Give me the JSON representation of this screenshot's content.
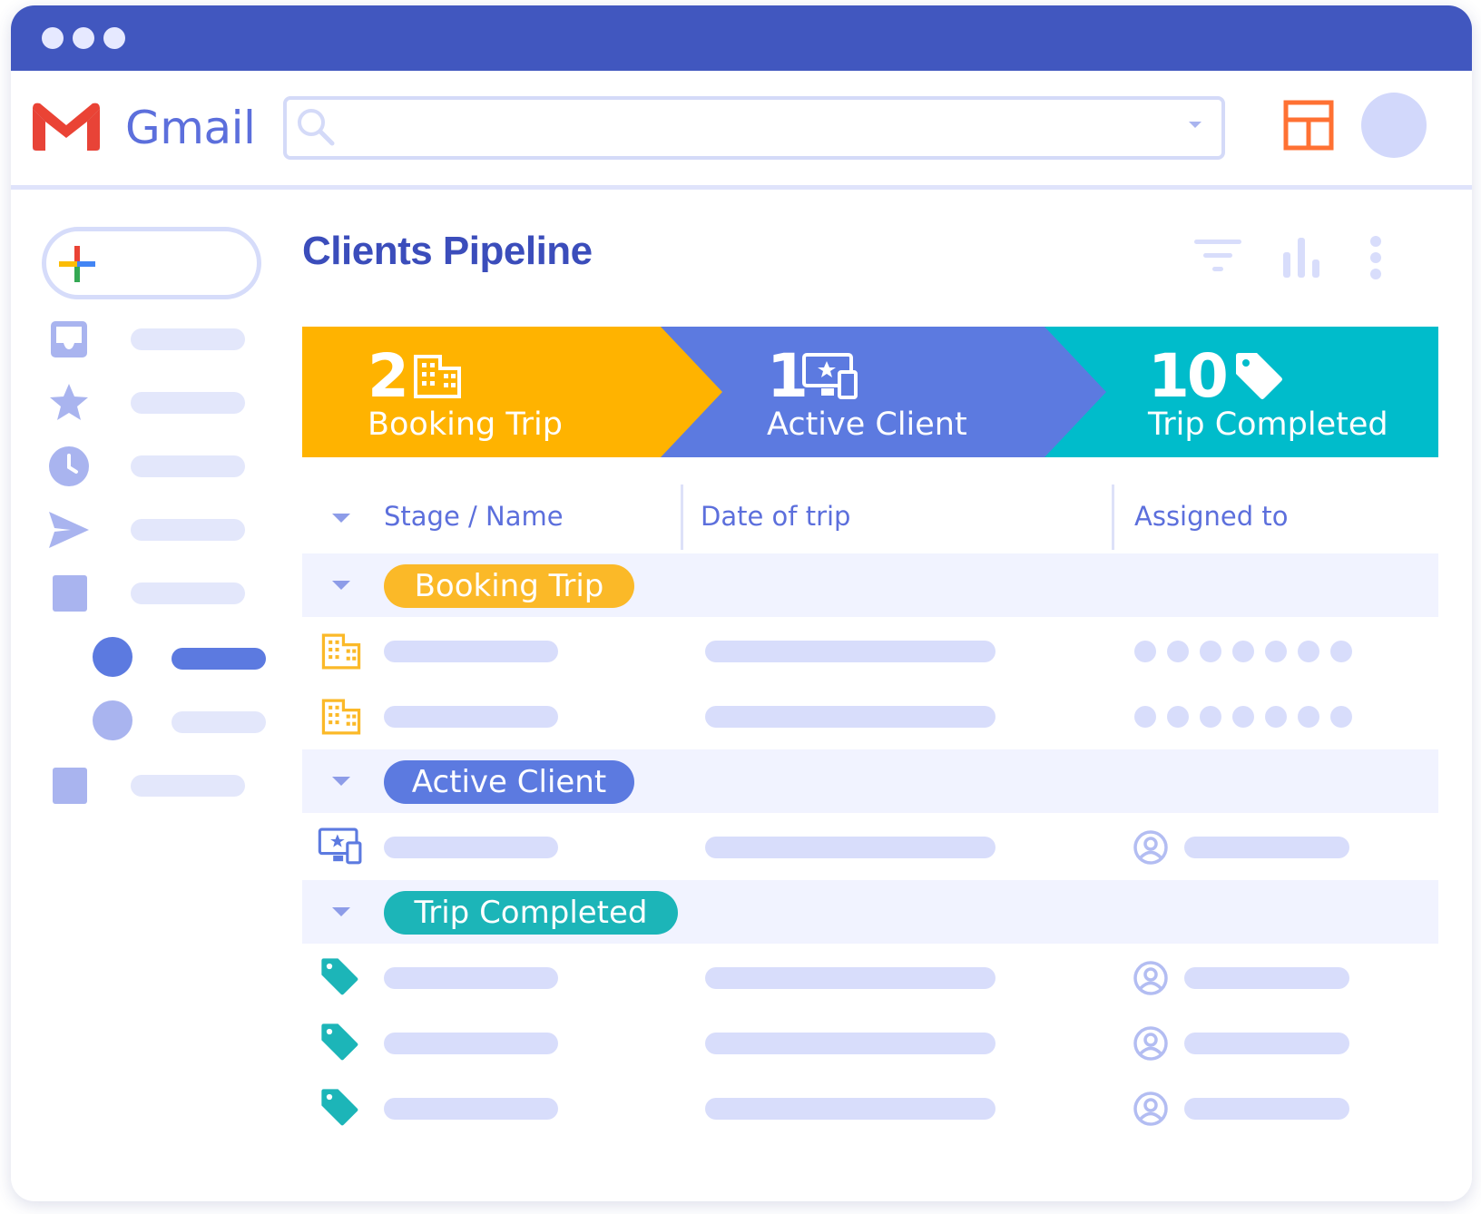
{
  "app": {
    "name": "Gmail"
  },
  "search": {
    "placeholder": ""
  },
  "page": {
    "title": "Clients Pipeline"
  },
  "toolbar": {
    "icons": [
      "filter-icon",
      "chart-icon",
      "more-vert-icon"
    ]
  },
  "pipeline": [
    {
      "count": "2",
      "label": "Booking Trip",
      "color": "#ffb300",
      "icon": "building-icon"
    },
    {
      "count": "1",
      "label": "Active Client",
      "color": "#5c7ae0",
      "icon": "devices-star-icon"
    },
    {
      "count": "10",
      "label": "Trip Completed",
      "color": "#00bccb",
      "icon": "tag-icon"
    }
  ],
  "table": {
    "columns": [
      "Stage / Name",
      "Date of trip",
      "Assigned to"
    ],
    "groups": [
      {
        "label": "Booking Trip",
        "color": "#fbb928",
        "rows": 2
      },
      {
        "label": "Active Client",
        "color": "#5c7ae0",
        "rows": 1
      },
      {
        "label": "Trip Completed",
        "color": "#1cb5b8",
        "rows": 3
      }
    ]
  },
  "colors": {
    "titlebar": "#4157bf",
    "accent": "#3b4dbb",
    "skeleton": "#d8ddfb"
  }
}
